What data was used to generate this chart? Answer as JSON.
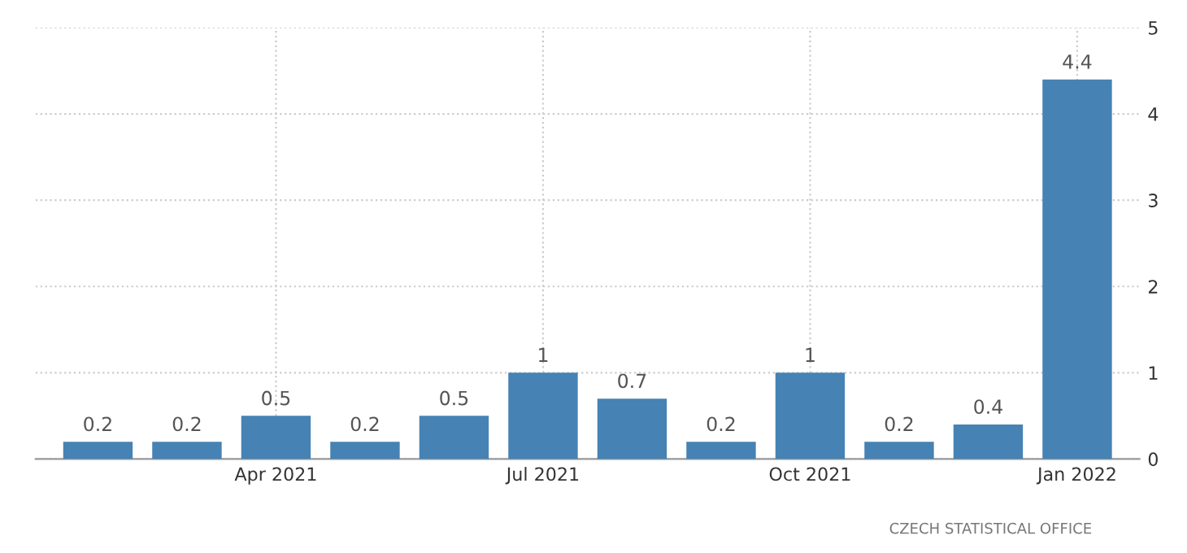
{
  "chart_data": {
    "type": "bar",
    "categories": [
      null,
      null,
      "Apr 2021",
      null,
      null,
      "Jul 2021",
      null,
      null,
      "Oct 2021",
      null,
      null,
      "Jan 2022"
    ],
    "values": [
      0.2,
      0.2,
      0.5,
      0.2,
      0.5,
      1,
      0.7,
      0.2,
      1,
      0.2,
      0.4,
      4.4
    ],
    "color": "#4682b4",
    "ylim": [
      0,
      5
    ],
    "yticks": [
      0,
      1,
      2,
      3,
      4,
      5
    ],
    "grid": true,
    "data_labels": true,
    "annotations": [
      "CZECH STATISTICAL OFFICE"
    ]
  }
}
